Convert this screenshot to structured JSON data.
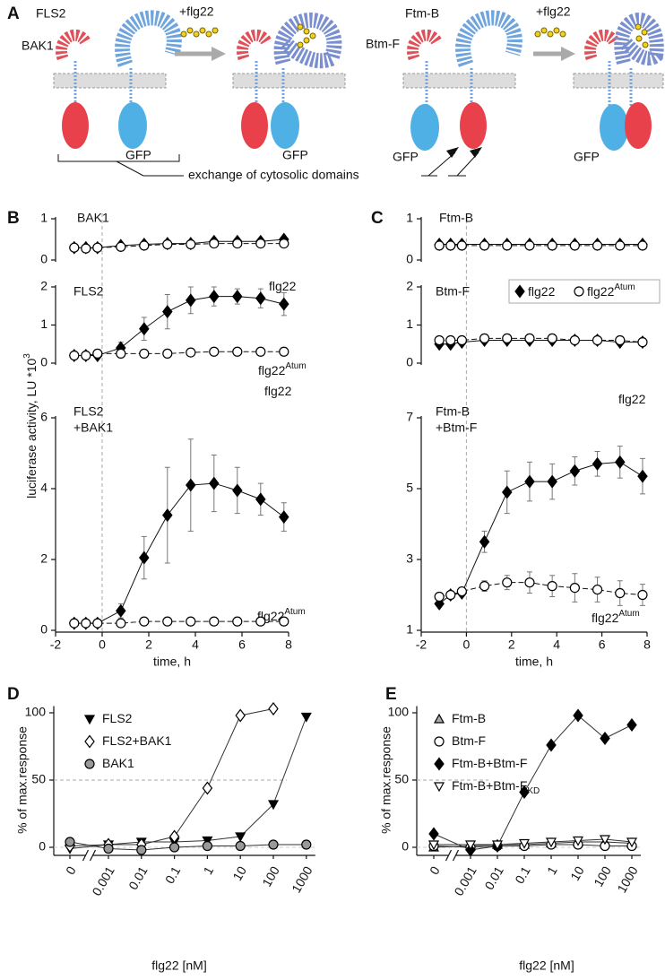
{
  "diagram": {
    "letter": "A",
    "labels": [
      "FLS2",
      "BAK1",
      "+flg22",
      "GFP",
      "GFP",
      "Ftm-B",
      "Btm-F",
      "+flg22",
      "GFP",
      "GFP",
      "exchange of cytosolic domains"
    ]
  },
  "chart_data": [
    {
      "type": "line",
      "letter": "B",
      "ylabel": "luciferase activity, LU *10",
      "ylabel_sup": "3",
      "xlabel": "time, h",
      "x": [
        -1.2,
        -0.7,
        -0.2,
        0.8,
        1.8,
        2.8,
        3.8,
        4.8,
        5.8,
        6.8,
        7.8
      ],
      "xlim": [
        -2,
        8
      ],
      "xticks": [
        -2,
        0,
        2,
        4,
        6,
        8
      ],
      "vline": 0,
      "panels": [
        {
          "title": "BAK1",
          "ylim": [
            0,
            1
          ],
          "yticks": [
            0,
            1
          ],
          "series": [
            {
              "marker": "diamond",
              "fill": "#000000",
              "values": [
                0.3,
                0.3,
                0.3,
                0.35,
                0.38,
                0.4,
                0.4,
                0.45,
                0.45,
                0.45,
                0.5
              ]
            },
            {
              "marker": "circle",
              "fill": "#ffffff",
              "values": [
                0.3,
                0.28,
                0.3,
                0.32,
                0.35,
                0.38,
                0.38,
                0.4,
                0.4,
                0.4,
                0.4
              ]
            }
          ]
        },
        {
          "title": "FLS2",
          "ylim": [
            0,
            2
          ],
          "yticks": [
            0,
            1,
            2
          ],
          "annotations": [
            {
              "text": "flg22"
            },
            {
              "text": "flg22",
              "sup": "Atum"
            }
          ],
          "series": [
            {
              "marker": "diamond",
              "fill": "#000000",
              "values": [
                0.2,
                0.2,
                0.2,
                0.4,
                0.9,
                1.35,
                1.65,
                1.75,
                1.75,
                1.7,
                1.55
              ],
              "errors": [
                0,
                0,
                0,
                0.15,
                0.3,
                0.45,
                0.35,
                0.25,
                0.2,
                0.25,
                0.3
              ]
            },
            {
              "marker": "circle",
              "fill": "#ffffff",
              "values": [
                0.2,
                0.2,
                0.25,
                0.25,
                0.25,
                0.25,
                0.28,
                0.3,
                0.3,
                0.3,
                0.3
              ]
            }
          ]
        },
        {
          "title": [
            "FLS2",
            "+BAK1"
          ],
          "ylim": [
            0,
            6
          ],
          "yticks": [
            0,
            2,
            4,
            6
          ],
          "annotations": [
            {
              "text": "flg22"
            },
            {
              "text": "flg22",
              "sup": "Atum"
            }
          ],
          "series": [
            {
              "marker": "diamond",
              "fill": "#000000",
              "values": [
                0.2,
                0.2,
                0.2,
                0.55,
                2.05,
                3.25,
                4.1,
                4.15,
                3.95,
                3.7,
                3.2
              ],
              "errors": [
                0,
                0,
                0,
                0.2,
                0.6,
                1.35,
                1.3,
                0.8,
                0.65,
                0.45,
                0.4
              ]
            },
            {
              "marker": "circle",
              "fill": "#ffffff",
              "values": [
                0.2,
                0.2,
                0.2,
                0.2,
                0.25,
                0.25,
                0.25,
                0.25,
                0.25,
                0.25,
                0.25
              ]
            }
          ]
        }
      ]
    },
    {
      "type": "line",
      "letter": "C",
      "xlabel": "time, h",
      "x": [
        -1.2,
        -0.7,
        -0.2,
        0.8,
        1.8,
        2.8,
        3.8,
        4.8,
        5.8,
        6.8,
        7.8
      ],
      "xlim": [
        -2,
        8
      ],
      "xticks": [
        -2,
        0,
        2,
        4,
        6,
        8
      ],
      "vline": 0,
      "legend": [
        {
          "text": "flg22",
          "marker": "diamond",
          "fill": "#000000"
        },
        {
          "text": "flg22",
          "sup": "Atum",
          "marker": "circle",
          "fill": "#ffffff"
        }
      ],
      "panels": [
        {
          "title": "Ftm-B",
          "ylim": [
            0,
            1
          ],
          "yticks": [
            0,
            1
          ],
          "series": [
            {
              "marker": "diamond",
              "fill": "#000000",
              "values": [
                0.38,
                0.38,
                0.38,
                0.38,
                0.38,
                0.38,
                0.38,
                0.38,
                0.38,
                0.38,
                0.38
              ]
            },
            {
              "marker": "circle",
              "fill": "#ffffff",
              "values": [
                0.35,
                0.35,
                0.35,
                0.35,
                0.35,
                0.35,
                0.35,
                0.35,
                0.35,
                0.35,
                0.35
              ]
            }
          ]
        },
        {
          "title": "Btm-F",
          "ylim": [
            0,
            2
          ],
          "yticks": [
            0,
            1,
            2
          ],
          "series": [
            {
              "marker": "diamond",
              "fill": "#000000",
              "values": [
                0.5,
                0.5,
                0.55,
                0.6,
                0.6,
                0.6,
                0.6,
                0.6,
                0.6,
                0.55,
                0.55
              ]
            },
            {
              "marker": "circle",
              "fill": "#ffffff",
              "values": [
                0.6,
                0.6,
                0.6,
                0.65,
                0.65,
                0.65,
                0.65,
                0.6,
                0.6,
                0.6,
                0.55
              ]
            }
          ]
        },
        {
          "title": [
            "Ftm-B",
            "+Btm-F"
          ],
          "ylim": [
            1,
            7
          ],
          "yticks": [
            1,
            3,
            5,
            7
          ],
          "annotations": [
            {
              "text": "flg22"
            },
            {
              "text": "flg22",
              "sup": "Atum"
            }
          ],
          "series": [
            {
              "marker": "diamond",
              "fill": "#000000",
              "values": [
                1.75,
                2.0,
                2.05,
                3.5,
                4.9,
                5.2,
                5.2,
                5.5,
                5.7,
                5.75,
                5.35
              ],
              "errors": [
                0,
                0,
                0,
                0.3,
                0.6,
                0.55,
                0.5,
                0.4,
                0.35,
                0.45,
                0.5
              ]
            },
            {
              "marker": "circle",
              "fill": "#ffffff",
              "values": [
                1.95,
                2.0,
                2.1,
                2.25,
                2.35,
                2.35,
                2.25,
                2.2,
                2.15,
                2.05,
                2.0
              ],
              "errors": [
                0,
                0,
                0,
                0.15,
                0.2,
                0.3,
                0.3,
                0.4,
                0.35,
                0.35,
                0.3
              ]
            }
          ]
        }
      ]
    },
    {
      "type": "scatter",
      "letter": "D",
      "ylabel": "% of max.response",
      "xlabel": "flg22 [nM]",
      "categories": [
        "0",
        "0.001",
        "0.01",
        "0.1",
        "1",
        "10",
        "100",
        "1000"
      ],
      "ylim": [
        -6,
        105
      ],
      "yticks": [
        0,
        50,
        100
      ],
      "ref_y": 50,
      "series": [
        {
          "name": "FLS2",
          "marker": "triangle-down",
          "fill": "#000000",
          "values": [
            -1,
            2,
            4,
            4,
            5,
            8,
            32,
            97
          ]
        },
        {
          "name": "FLS2+BAK1",
          "marker": "diamond",
          "fill": "#ffffff",
          "values": [
            1,
            2,
            2,
            8,
            44,
            98,
            103,
            null
          ]
        },
        {
          "name": "BAK1",
          "marker": "circle",
          "fill": "#999999",
          "values": [
            4,
            -1,
            -2,
            0,
            1,
            1,
            2,
            2
          ]
        }
      ]
    },
    {
      "type": "scatter",
      "letter": "E",
      "ylabel": "% of max.response",
      "xlabel": "flg22 [nM]",
      "categories": [
        "0",
        "0.001",
        "0.01",
        "0.1",
        "1",
        "10",
        "100",
        "1000"
      ],
      "ylim": [
        -6,
        105
      ],
      "yticks": [
        0,
        50,
        100
      ],
      "ref_y": 50,
      "series": [
        {
          "name": "Ftm-B",
          "marker": "triangle-up",
          "fill": "#aaaaaa",
          "values": [
            0,
            1,
            2,
            2,
            3,
            4,
            4,
            3
          ]
        },
        {
          "name": "Btm-F",
          "marker": "circle",
          "fill": "#ffffff",
          "values": [
            1,
            0,
            1,
            1,
            2,
            2,
            1,
            1
          ]
        },
        {
          "name": "Ftm-B+Btm-F",
          "marker": "diamond",
          "fill": "#000000",
          "values": [
            10,
            -2,
            1,
            41,
            76,
            98,
            81,
            91
          ]
        },
        {
          "name": "Ftm-B+Btm-F",
          "name_sub": "KD",
          "marker": "triangle-down",
          "fill": "#ffffff",
          "values": [
            2,
            2,
            2,
            3,
            4,
            5,
            6,
            4
          ]
        }
      ]
    }
  ]
}
